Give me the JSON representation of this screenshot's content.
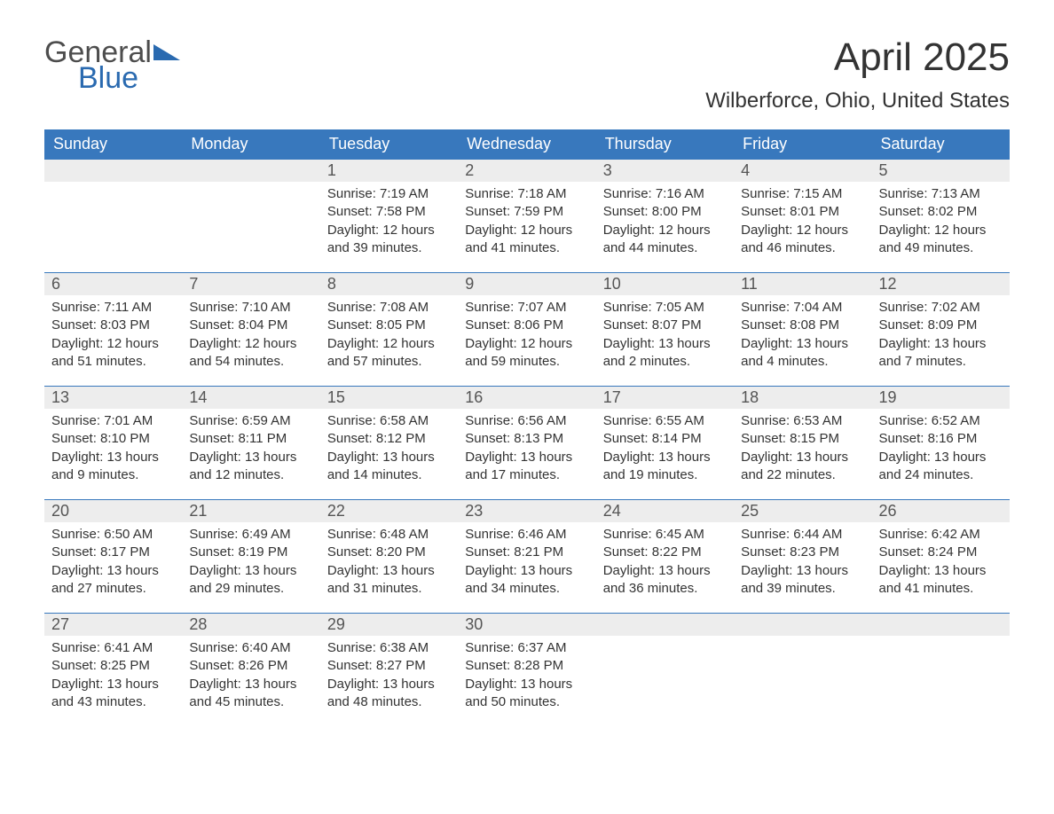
{
  "logo": {
    "text1": "General",
    "text2": "Blue",
    "color1": "#4d4d4d",
    "color2": "#2a6ab0"
  },
  "title": "April 2025",
  "location": "Wilberforce, Ohio, United States",
  "colors": {
    "header_bg": "#3878bd",
    "header_text": "#ffffff",
    "daynum_bg": "#ededed",
    "daynum_border": "#3878bd",
    "body_text": "#333333"
  },
  "weekdays": [
    "Sunday",
    "Monday",
    "Tuesday",
    "Wednesday",
    "Thursday",
    "Friday",
    "Saturday"
  ],
  "weeks": [
    [
      null,
      null,
      {
        "n": "1",
        "sunrise": "7:19 AM",
        "sunset": "7:58 PM",
        "daylight": "12 hours and 39 minutes."
      },
      {
        "n": "2",
        "sunrise": "7:18 AM",
        "sunset": "7:59 PM",
        "daylight": "12 hours and 41 minutes."
      },
      {
        "n": "3",
        "sunrise": "7:16 AM",
        "sunset": "8:00 PM",
        "daylight": "12 hours and 44 minutes."
      },
      {
        "n": "4",
        "sunrise": "7:15 AM",
        "sunset": "8:01 PM",
        "daylight": "12 hours and 46 minutes."
      },
      {
        "n": "5",
        "sunrise": "7:13 AM",
        "sunset": "8:02 PM",
        "daylight": "12 hours and 49 minutes."
      }
    ],
    [
      {
        "n": "6",
        "sunrise": "7:11 AM",
        "sunset": "8:03 PM",
        "daylight": "12 hours and 51 minutes."
      },
      {
        "n": "7",
        "sunrise": "7:10 AM",
        "sunset": "8:04 PM",
        "daylight": "12 hours and 54 minutes."
      },
      {
        "n": "8",
        "sunrise": "7:08 AM",
        "sunset": "8:05 PM",
        "daylight": "12 hours and 57 minutes."
      },
      {
        "n": "9",
        "sunrise": "7:07 AM",
        "sunset": "8:06 PM",
        "daylight": "12 hours and 59 minutes."
      },
      {
        "n": "10",
        "sunrise": "7:05 AM",
        "sunset": "8:07 PM",
        "daylight": "13 hours and 2 minutes."
      },
      {
        "n": "11",
        "sunrise": "7:04 AM",
        "sunset": "8:08 PM",
        "daylight": "13 hours and 4 minutes."
      },
      {
        "n": "12",
        "sunrise": "7:02 AM",
        "sunset": "8:09 PM",
        "daylight": "13 hours and 7 minutes."
      }
    ],
    [
      {
        "n": "13",
        "sunrise": "7:01 AM",
        "sunset": "8:10 PM",
        "daylight": "13 hours and 9 minutes."
      },
      {
        "n": "14",
        "sunrise": "6:59 AM",
        "sunset": "8:11 PM",
        "daylight": "13 hours and 12 minutes."
      },
      {
        "n": "15",
        "sunrise": "6:58 AM",
        "sunset": "8:12 PM",
        "daylight": "13 hours and 14 minutes."
      },
      {
        "n": "16",
        "sunrise": "6:56 AM",
        "sunset": "8:13 PM",
        "daylight": "13 hours and 17 minutes."
      },
      {
        "n": "17",
        "sunrise": "6:55 AM",
        "sunset": "8:14 PM",
        "daylight": "13 hours and 19 minutes."
      },
      {
        "n": "18",
        "sunrise": "6:53 AM",
        "sunset": "8:15 PM",
        "daylight": "13 hours and 22 minutes."
      },
      {
        "n": "19",
        "sunrise": "6:52 AM",
        "sunset": "8:16 PM",
        "daylight": "13 hours and 24 minutes."
      }
    ],
    [
      {
        "n": "20",
        "sunrise": "6:50 AM",
        "sunset": "8:17 PM",
        "daylight": "13 hours and 27 minutes."
      },
      {
        "n": "21",
        "sunrise": "6:49 AM",
        "sunset": "8:19 PM",
        "daylight": "13 hours and 29 minutes."
      },
      {
        "n": "22",
        "sunrise": "6:48 AM",
        "sunset": "8:20 PM",
        "daylight": "13 hours and 31 minutes."
      },
      {
        "n": "23",
        "sunrise": "6:46 AM",
        "sunset": "8:21 PM",
        "daylight": "13 hours and 34 minutes."
      },
      {
        "n": "24",
        "sunrise": "6:45 AM",
        "sunset": "8:22 PM",
        "daylight": "13 hours and 36 minutes."
      },
      {
        "n": "25",
        "sunrise": "6:44 AM",
        "sunset": "8:23 PM",
        "daylight": "13 hours and 39 minutes."
      },
      {
        "n": "26",
        "sunrise": "6:42 AM",
        "sunset": "8:24 PM",
        "daylight": "13 hours and 41 minutes."
      }
    ],
    [
      {
        "n": "27",
        "sunrise": "6:41 AM",
        "sunset": "8:25 PM",
        "daylight": "13 hours and 43 minutes."
      },
      {
        "n": "28",
        "sunrise": "6:40 AM",
        "sunset": "8:26 PM",
        "daylight": "13 hours and 45 minutes."
      },
      {
        "n": "29",
        "sunrise": "6:38 AM",
        "sunset": "8:27 PM",
        "daylight": "13 hours and 48 minutes."
      },
      {
        "n": "30",
        "sunrise": "6:37 AM",
        "sunset": "8:28 PM",
        "daylight": "13 hours and 50 minutes."
      },
      null,
      null,
      null
    ]
  ],
  "labels": {
    "sunrise": "Sunrise: ",
    "sunset": "Sunset: ",
    "daylight": "Daylight: "
  }
}
